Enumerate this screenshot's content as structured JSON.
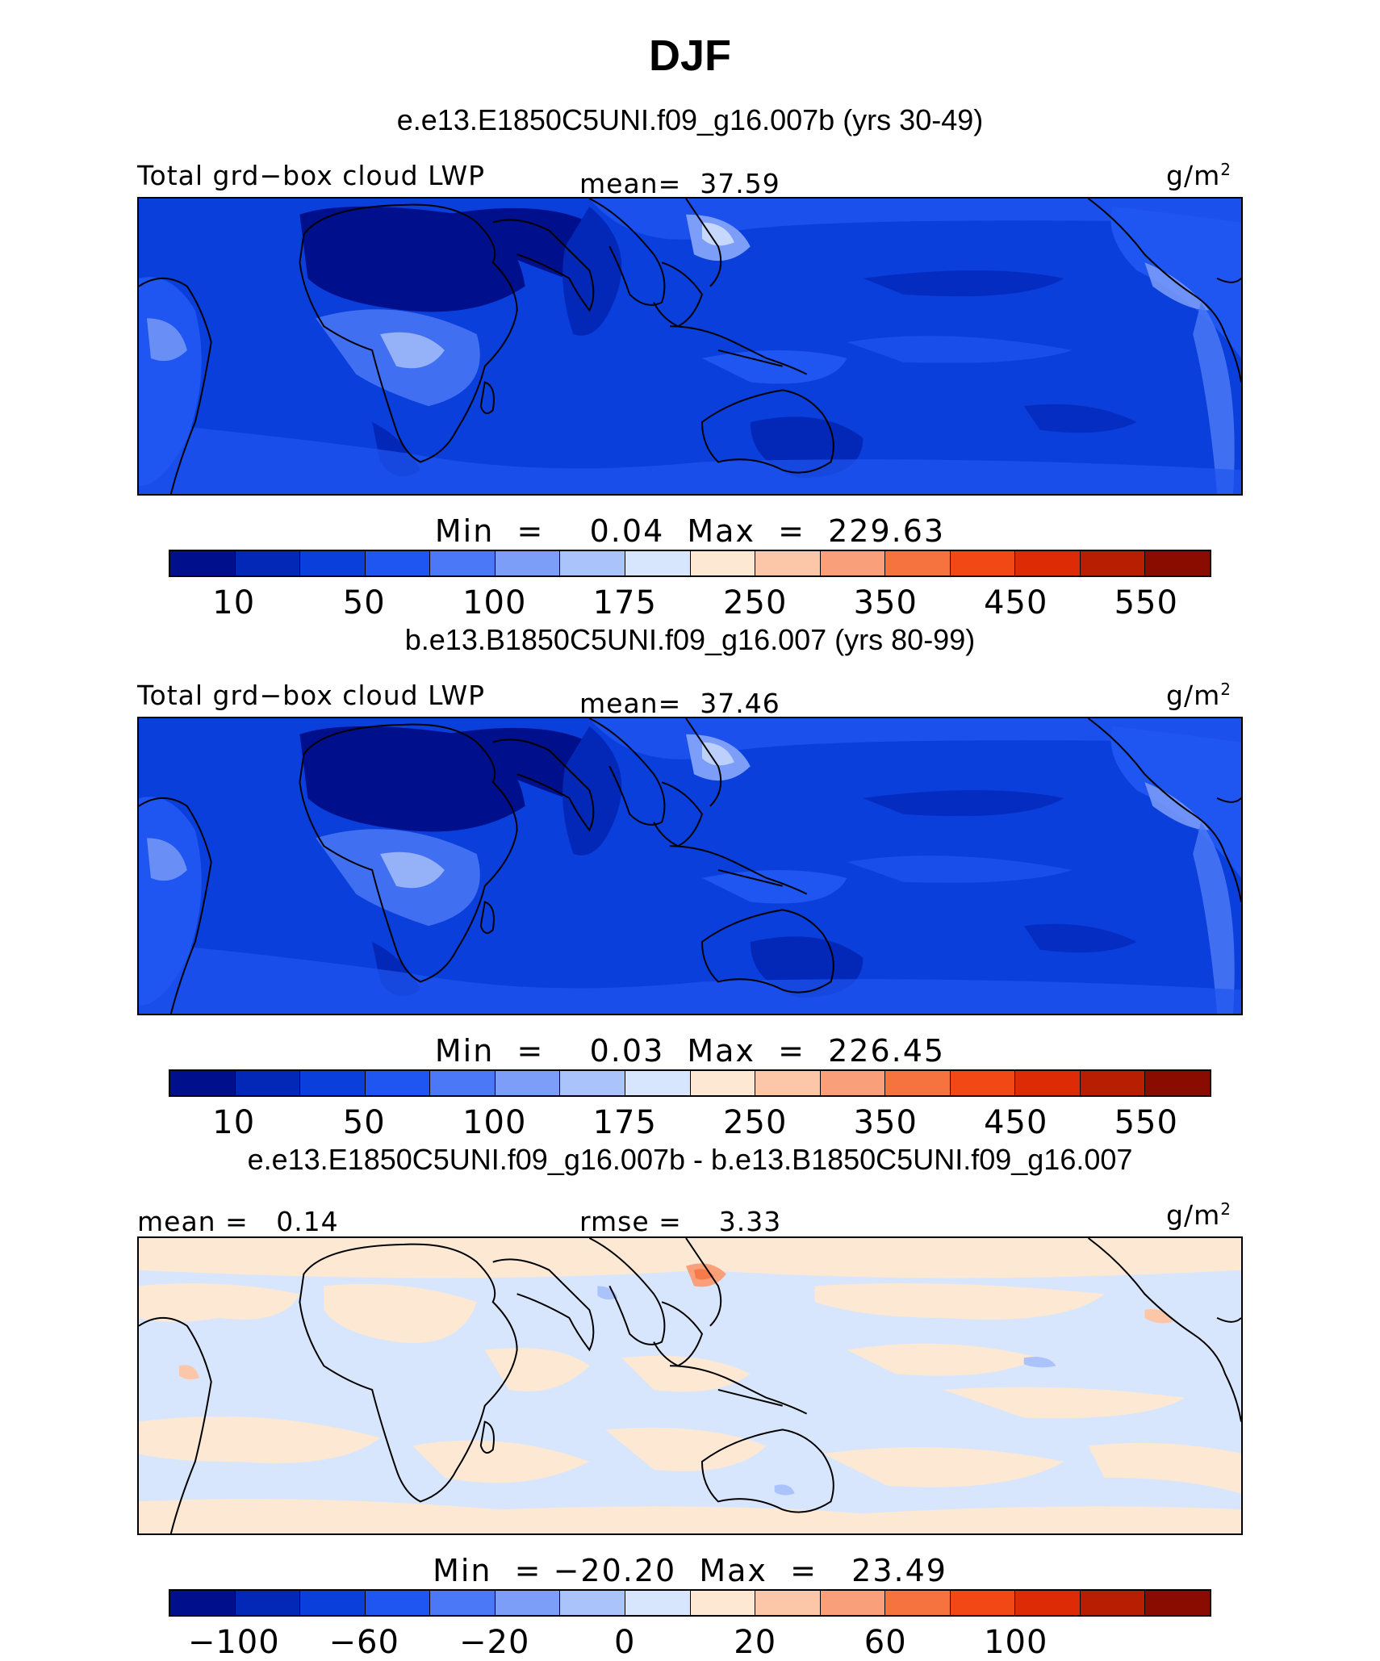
{
  "title": "DJF",
  "colors_abs": [
    "#00108c",
    "#0327b7",
    "#0a3fdc",
    "#1f55f0",
    "#4b78f6",
    "#7c9ef8",
    "#aac3fa",
    "#d8e6fd",
    "#fde8d4",
    "#fcc6a8",
    "#f9a07a",
    "#f6723f",
    "#f24815",
    "#dd2c05",
    "#b81e02",
    "#8a0b00"
  ],
  "panels": [
    {
      "case_title": "e.e13.E1850C5UNI.f09_g16.007b (yrs 30-49)",
      "left_label": "Total grd−box cloud LWP",
      "center_label": "mean=  37.59",
      "units": "g/m",
      "units_sup": "2",
      "minmax": "Min  =    0.04  Max  =  229.63",
      "kind": "abs",
      "ticks": [
        "10",
        "50",
        "100",
        "175",
        "250",
        "350",
        "450",
        "550"
      ]
    },
    {
      "case_title": "b.e13.B1850C5UNI.f09_g16.007 (yrs 80-99)",
      "left_label": "Total grd−box cloud LWP",
      "center_label": "mean=  37.46",
      "units": "g/m",
      "units_sup": "2",
      "minmax": "Min  =    0.03  Max  =  226.45",
      "kind": "abs",
      "ticks": [
        "10",
        "50",
        "100",
        "175",
        "250",
        "350",
        "450",
        "550"
      ]
    },
    {
      "case_title": "e.e13.E1850C5UNI.f09_g16.007b - b.e13.B1850C5UNI.f09_g16.007",
      "left_label": "mean =   0.14",
      "center_label": "rmse =    3.33",
      "units": "g/m",
      "units_sup": "2",
      "minmax": "Min  = −20.20  Max  =   23.49",
      "kind": "diff",
      "ticks": [
        "−100",
        "−60",
        "−20",
        "0",
        "20",
        "60",
        "100"
      ]
    }
  ]
}
